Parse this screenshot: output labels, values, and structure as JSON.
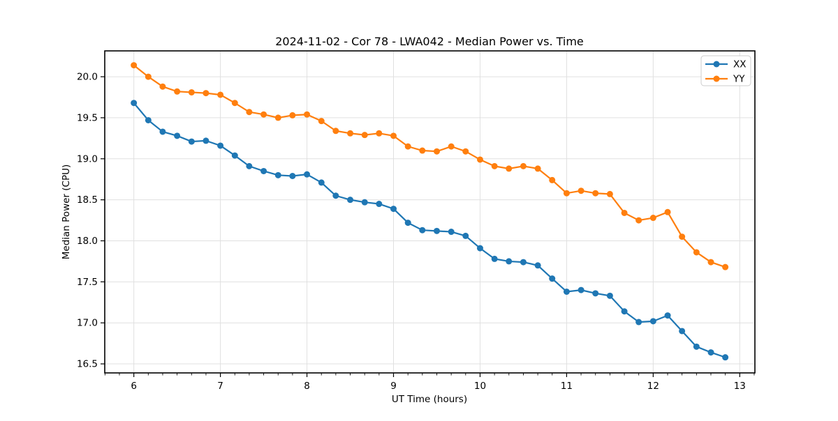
{
  "chart_data": {
    "type": "line",
    "title": "2024-11-02 - Cor 78 - LWA042 - Median Power vs. Time",
    "xlabel": "UT Time (hours)",
    "ylabel": "Median Power (CPU)",
    "xlim": [
      5.664,
      13.175
    ],
    "ylim": [
      16.39,
      20.315
    ],
    "x_ticks": [
      6,
      7,
      8,
      9,
      10,
      11,
      12,
      13
    ],
    "y_ticks": [
      16.5,
      17.0,
      17.5,
      18.0,
      18.5,
      19.0,
      19.5,
      20.0
    ],
    "x_minor_step": 0.16667,
    "grid": true,
    "grid_color": "#e0e0e0",
    "legend_position": "upper right",
    "x": [
      6.0,
      6.167,
      6.333,
      6.5,
      6.667,
      6.833,
      7.0,
      7.167,
      7.333,
      7.5,
      7.667,
      7.833,
      8.0,
      8.167,
      8.333,
      8.5,
      8.667,
      8.833,
      9.0,
      9.167,
      9.333,
      9.5,
      9.667,
      9.833,
      10.0,
      10.167,
      10.333,
      10.5,
      10.667,
      10.833,
      11.0,
      11.167,
      11.333,
      11.5,
      11.667,
      11.833,
      12.0,
      12.167,
      12.333,
      12.5,
      12.667,
      12.833
    ],
    "series": [
      {
        "name": "XX",
        "color": "#1f77b4",
        "values": [
          19.68,
          19.47,
          19.33,
          19.28,
          19.21,
          19.22,
          19.16,
          19.04,
          18.91,
          18.85,
          18.8,
          18.79,
          18.81,
          18.71,
          18.55,
          18.5,
          18.47,
          18.45,
          18.39,
          18.22,
          18.13,
          18.12,
          18.11,
          18.06,
          17.91,
          17.78,
          17.75,
          17.74,
          17.7,
          17.54,
          17.38,
          17.4,
          17.36,
          17.33,
          17.14,
          17.01,
          17.02,
          17.09,
          16.9,
          16.71,
          16.64,
          16.58
        ]
      },
      {
        "name": "YY",
        "color": "#ff7f0e",
        "values": [
          20.14,
          20.0,
          19.88,
          19.82,
          19.81,
          19.8,
          19.78,
          19.68,
          19.57,
          19.54,
          19.5,
          19.53,
          19.54,
          19.46,
          19.34,
          19.31,
          19.29,
          19.31,
          19.28,
          19.15,
          19.1,
          19.09,
          19.15,
          19.09,
          18.99,
          18.91,
          18.88,
          18.91,
          18.88,
          18.74,
          18.58,
          18.61,
          18.58,
          18.57,
          18.34,
          18.25,
          18.28,
          18.35,
          18.05,
          17.86,
          17.74,
          17.68
        ]
      }
    ]
  }
}
